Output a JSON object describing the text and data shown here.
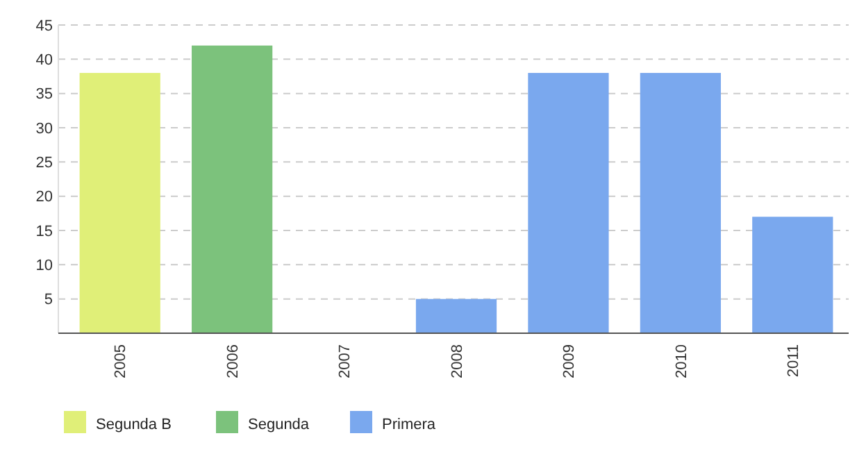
{
  "chart_data": {
    "type": "bar",
    "categories": [
      "2005",
      "2006",
      "2007",
      "2008",
      "2009",
      "2010",
      "2011"
    ],
    "series": [
      {
        "name": "Segunda B",
        "color": "#e0ef78",
        "values": [
          38,
          null,
          null,
          null,
          null,
          null,
          null
        ]
      },
      {
        "name": "Segunda",
        "color": "#7cc27c",
        "values": [
          null,
          42,
          null,
          null,
          null,
          null,
          null
        ]
      },
      {
        "name": "Primera",
        "color": "#7aa8ee",
        "values": [
          null,
          null,
          null,
          5,
          38,
          38,
          17
        ]
      }
    ],
    "ylim": [
      0,
      45
    ],
    "yticks": [
      5,
      10,
      15,
      20,
      25,
      30,
      35,
      40,
      45
    ],
    "grid": "y",
    "legend": "bottom left"
  }
}
